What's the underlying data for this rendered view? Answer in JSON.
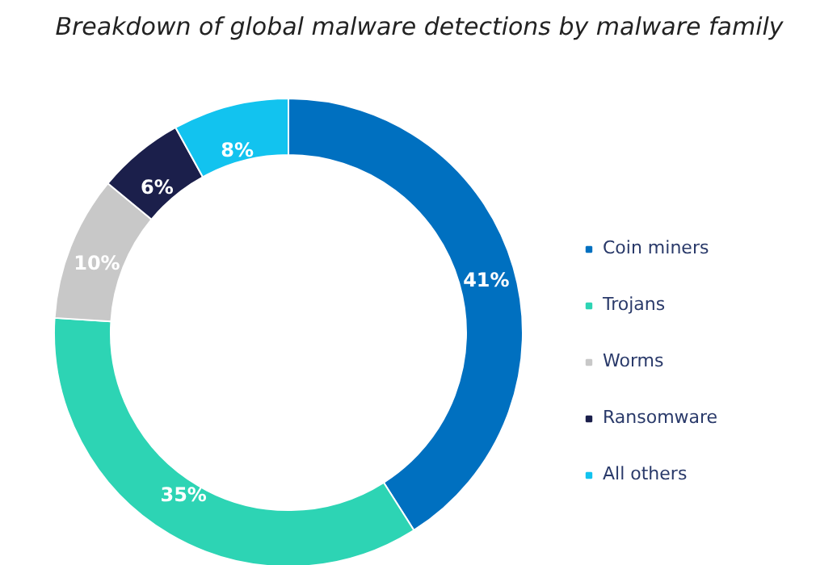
{
  "chart_data": {
    "type": "donut",
    "title": "Breakdown of global malware detections by malware family",
    "categories": [
      "Coin miners",
      "Trojans",
      "Worms",
      "Ransomware",
      "All others"
    ],
    "values": [
      41,
      35,
      10,
      6,
      8
    ],
    "colors": [
      "#0070c0",
      "#2dd4b4",
      "#c8c8c8",
      "#1b1f4b",
      "#12c3ef"
    ],
    "value_labels": [
      "41%",
      "35%",
      "10%",
      "6%",
      "8%"
    ],
    "legend": "right"
  }
}
